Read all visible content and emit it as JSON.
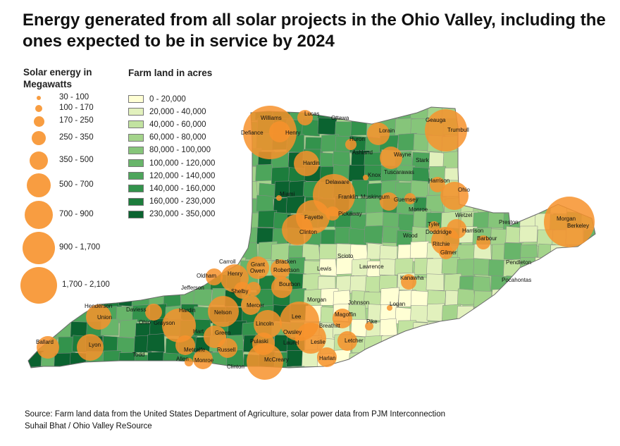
{
  "title": "Energy generated from all solar projects in the Ohio Valley, including the ones expected to be in service by 2024",
  "legend_solar": {
    "title": "Solar energy in Megawatts",
    "color": "#f7922c",
    "bins": [
      "30 - 100",
      "100 - 170",
      "170 - 250",
      "250 - 350",
      "350 - 500",
      "500 - 700",
      "700 - 900",
      "900 - 1,700",
      "1,700 - 2,100"
    ]
  },
  "legend_farm": {
    "title": "Farm land in acres",
    "bins": [
      {
        "label": "0 - 20,000",
        "color": "#ffffd4"
      },
      {
        "label": "20,000 - 40,000",
        "color": "#e2f1bd"
      },
      {
        "label": "40,000 - 60,000",
        "color": "#c2e3a0"
      },
      {
        "label": "60,000 - 80,000",
        "color": "#a4d48b"
      },
      {
        "label": "80,000 - 100,000",
        "color": "#86c57a"
      },
      {
        "label": "100,000 - 120,000",
        "color": "#68b56a"
      },
      {
        "label": "120,000 - 140,000",
        "color": "#4da55b"
      },
      {
        "label": "140,000 - 160,000",
        "color": "#33934c"
      },
      {
        "label": "160,000 - 230,000",
        "color": "#1c7d3c"
      },
      {
        "label": "230,000 - 350,000",
        "color": "#0b6330"
      }
    ]
  },
  "county_labels": [
    "Williams",
    "Lucas",
    "Ottawa",
    "Defiance",
    "Henry",
    "Huron",
    "Lorain",
    "Geauga",
    "Trumbull",
    "Ashland",
    "Wayne",
    "Hardin",
    "Stark",
    "Knox",
    "Tuscarawas",
    "Delaware",
    "Harrison",
    "Miami",
    "Franklin",
    "Muskingum",
    "Guernsey",
    "Ohio",
    "Monroe",
    "Pickaway",
    "Fayette",
    "Wetzel",
    "Clinton",
    "Tyler",
    "Doddridge",
    "Preston",
    "Morgan",
    "Berkeley",
    "Wood",
    "Harrison",
    "Ritchie",
    "Barbour",
    "Gilmer",
    "Scioto",
    "Carroll",
    "Grant",
    "Bracken",
    "Oldham",
    "Henry",
    "Owen",
    "Robertson",
    "Lewis",
    "Lawrence",
    "Pendleton",
    "Jefferson",
    "Shelby",
    "Bourbon",
    "Kanawha",
    "Pocahontas",
    "Morgan",
    "Johnson",
    "Mercer",
    "Henderson",
    "Daviess",
    "Hardin",
    "Nelson",
    "Logan",
    "Union",
    "Magoffin",
    "Lee",
    "Breathitt",
    "Ohio",
    "Grayson",
    "Lincoln",
    "Owsley",
    "Pike",
    "Hart",
    "Green",
    "Letcher",
    "Ballard",
    "Lyon",
    "Pulaski",
    "Laurel",
    "Leslie",
    "Todd",
    "Metcalfe",
    "Russell",
    "Allen",
    "Monroe",
    "Clinton",
    "McCreary",
    "Harlan"
  ],
  "source": {
    "line1": "Source: Farm land data from the United States Department of Agriculture, solar power data from PJM Interconnection",
    "line2": "Suhail Bhat / Ohio Valley ReSource"
  }
}
